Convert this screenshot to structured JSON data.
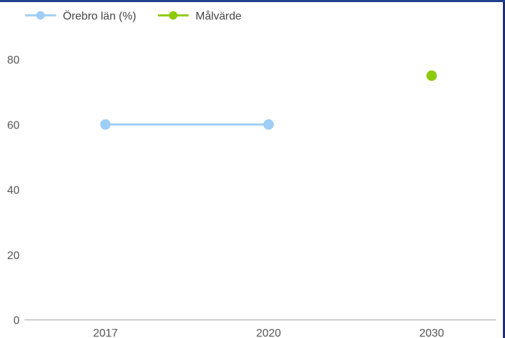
{
  "chart_data": {
    "type": "line",
    "categories": [
      "2017",
      "2020",
      "2030"
    ],
    "series": [
      {
        "name": "Örebro län (%)",
        "values": [
          60,
          60,
          null
        ],
        "color": "#9ecdf5",
        "style": "line-with-markers"
      },
      {
        "name": "Målvärde",
        "values": [
          null,
          null,
          75
        ],
        "color": "#8cc90a",
        "style": "marker-only"
      }
    ],
    "yticks": [
      0,
      20,
      40,
      60,
      80
    ],
    "ylim": [
      0,
      80
    ],
    "title": "",
    "xlabel": "",
    "ylabel": "",
    "grid": false,
    "legend_position": "top-left"
  }
}
